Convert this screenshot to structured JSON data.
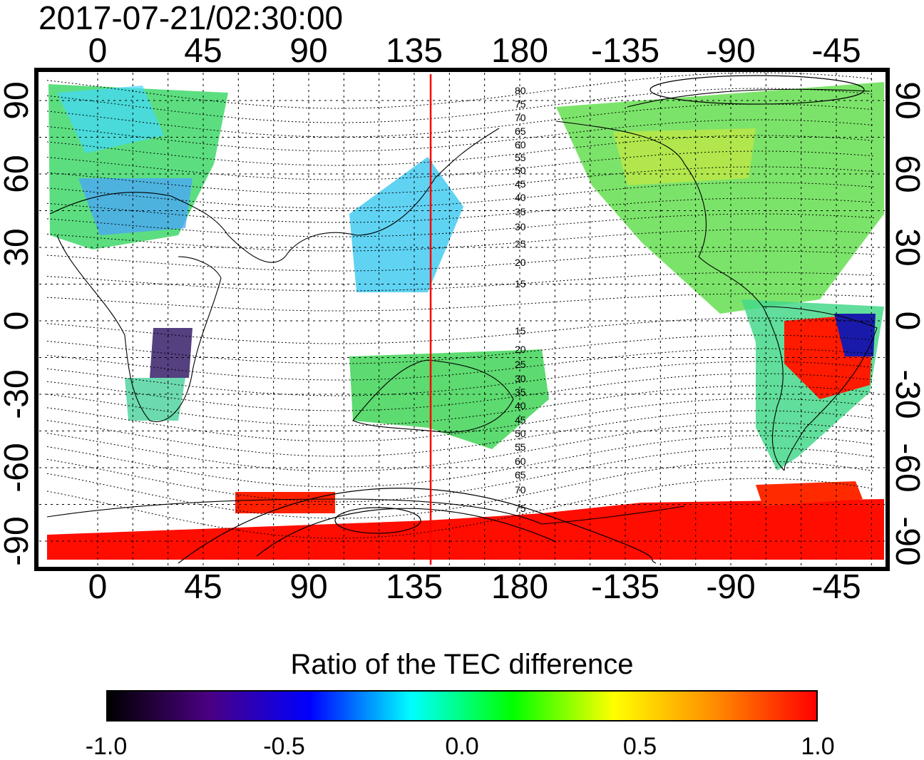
{
  "map": {
    "timestamp": "2017-07-21/02:30:00",
    "top_ticks": [
      "0",
      "45",
      "90",
      "135",
      "180",
      "-135",
      "-90",
      "-45"
    ],
    "bottom_ticks": [
      "0",
      "45",
      "90",
      "135",
      "180",
      "-135",
      "-90",
      "-45"
    ],
    "left_ticks": [
      "90",
      "60",
      "30",
      "0",
      "-30",
      "-60",
      "-90"
    ],
    "right_ticks": [
      "90",
      "60",
      "30",
      "0",
      "-30",
      "-60",
      "-90"
    ],
    "longitude_values": [
      0,
      45,
      90,
      135,
      180,
      -135,
      -90,
      -45
    ],
    "latitude_values": [
      90,
      60,
      30,
      0,
      -30,
      -60,
      -90
    ],
    "marker_longitude": 142,
    "marker_color": "#ff0000",
    "contour_labels_north": [
      "80",
      "75",
      "70",
      "65",
      "60",
      "55",
      "50",
      "45",
      "40",
      "35",
      "30",
      "25",
      "20",
      "15"
    ],
    "contour_labels_south": [
      "15",
      "20",
      "25",
      "30",
      "35",
      "40",
      "45",
      "50",
      "55",
      "60",
      "65",
      "70",
      "75"
    ],
    "contour_north_values": [
      80,
      75,
      70,
      65,
      60,
      55,
      50,
      45,
      40,
      35,
      30,
      25,
      20,
      15
    ],
    "contour_south_values": [
      15,
      20,
      25,
      30,
      35,
      40,
      45,
      50,
      55,
      60,
      65,
      70,
      75
    ]
  },
  "colorbar": {
    "title": "Ratio of the TEC difference",
    "tick_labels": [
      "-1.0",
      "-0.5",
      "0.0",
      "0.5",
      "1.0"
    ],
    "tick_values": [
      -1.0,
      -0.5,
      0.0,
      0.5,
      1.0
    ],
    "range": [
      -1.0,
      1.0
    ],
    "colors": [
      "#000000",
      "#4b0082",
      "#0000ff",
      "#00ffff",
      "#00ff00",
      "#ffff00",
      "#ff8c00",
      "#ff0000"
    ]
  }
}
